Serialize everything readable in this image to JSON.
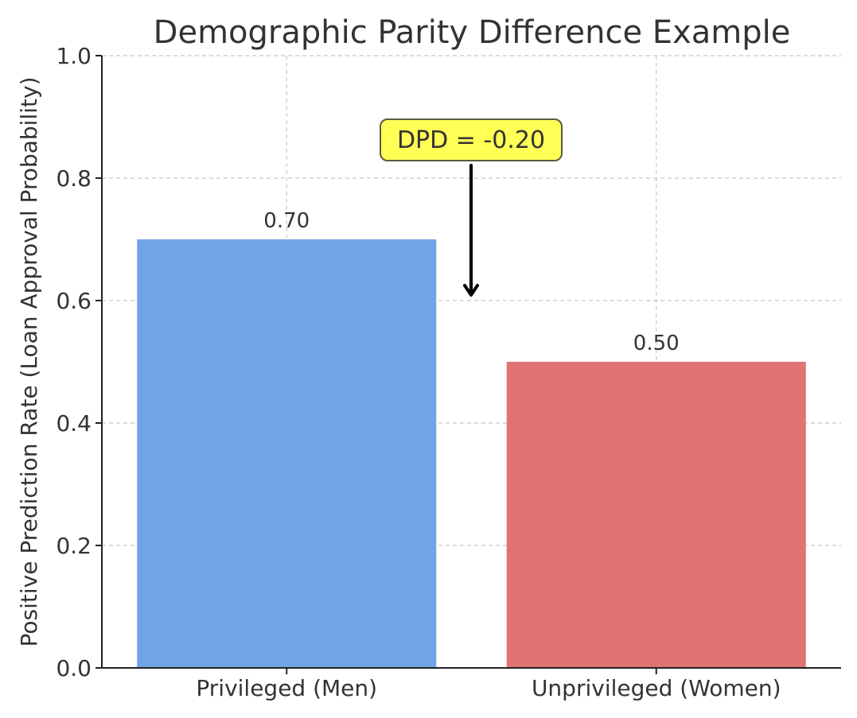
{
  "chart_data": {
    "type": "bar",
    "title": "Demographic Parity Difference Example",
    "xlabel": "",
    "ylabel": "Positive Prediction Rate (Loan Approval Probability)",
    "categories": [
      "Privileged (Men)",
      "Unprivileged (Women)"
    ],
    "values": [
      0.7,
      0.5
    ],
    "value_labels": [
      "0.70",
      "0.50"
    ],
    "colors": [
      "#6fa5e5",
      "#e07373"
    ],
    "ylim": [
      0,
      1.0
    ],
    "yticks": [
      0.0,
      0.2,
      0.4,
      0.6,
      0.8,
      1.0
    ],
    "ytick_labels": [
      "0.0",
      "0.2",
      "0.4",
      "0.6",
      "0.8",
      "1.0"
    ],
    "grid": true,
    "annotation": {
      "text": "DPD = -0.20",
      "box_color": "#ffff55",
      "arrow_target_value": 0.6
    }
  }
}
